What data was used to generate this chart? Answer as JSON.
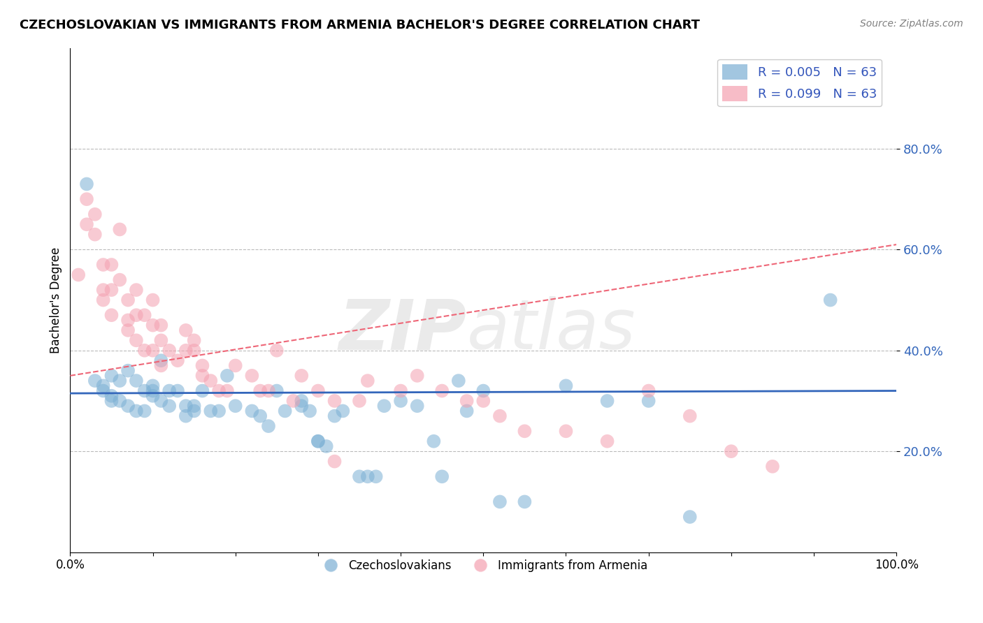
{
  "title": "CZECHOSLOVAKIAN VS IMMIGRANTS FROM ARMENIA BACHELOR'S DEGREE CORRELATION CHART",
  "source": "Source: ZipAtlas.com",
  "ylabel": "Bachelor's Degree",
  "xlim": [
    0.0,
    1.0
  ],
  "ylim": [
    0.0,
    1.0
  ],
  "xticks": [
    0.0,
    0.1,
    0.2,
    0.3,
    0.4,
    0.5,
    0.6,
    0.7,
    0.8,
    0.9,
    1.0
  ],
  "xticklabels": [
    "0.0%",
    "",
    "",
    "",
    "",
    "",
    "",
    "",
    "",
    "",
    "100.0%"
  ],
  "yticks": [
    0.2,
    0.4,
    0.6,
    0.8
  ],
  "yticklabels": [
    "20.0%",
    "40.0%",
    "60.0%",
    "80.0%"
  ],
  "blue_color": "#7BAFD4",
  "pink_color": "#F4A0B0",
  "blue_line_color": "#3366BB",
  "pink_line_color": "#EE6677",
  "grid_color": "#BBBBBB",
  "blue_scatter_x": [
    0.02,
    0.03,
    0.04,
    0.04,
    0.05,
    0.05,
    0.05,
    0.06,
    0.06,
    0.07,
    0.07,
    0.08,
    0.08,
    0.09,
    0.09,
    0.1,
    0.1,
    0.1,
    0.11,
    0.11,
    0.12,
    0.12,
    0.13,
    0.14,
    0.14,
    0.15,
    0.15,
    0.16,
    0.17,
    0.18,
    0.19,
    0.2,
    0.22,
    0.23,
    0.24,
    0.25,
    0.26,
    0.28,
    0.28,
    0.29,
    0.3,
    0.3,
    0.31,
    0.32,
    0.33,
    0.35,
    0.36,
    0.37,
    0.38,
    0.4,
    0.42,
    0.44,
    0.45,
    0.47,
    0.48,
    0.5,
    0.52,
    0.55,
    0.6,
    0.65,
    0.7,
    0.75,
    0.92
  ],
  "blue_scatter_y": [
    0.73,
    0.34,
    0.33,
    0.32,
    0.31,
    0.3,
    0.35,
    0.34,
    0.3,
    0.29,
    0.36,
    0.28,
    0.34,
    0.28,
    0.32,
    0.32,
    0.31,
    0.33,
    0.38,
    0.3,
    0.29,
    0.32,
    0.32,
    0.27,
    0.29,
    0.28,
    0.29,
    0.32,
    0.28,
    0.28,
    0.35,
    0.29,
    0.28,
    0.27,
    0.25,
    0.32,
    0.28,
    0.3,
    0.29,
    0.28,
    0.22,
    0.22,
    0.21,
    0.27,
    0.28,
    0.15,
    0.15,
    0.15,
    0.29,
    0.3,
    0.29,
    0.22,
    0.15,
    0.34,
    0.28,
    0.32,
    0.1,
    0.1,
    0.33,
    0.3,
    0.3,
    0.07,
    0.5
  ],
  "pink_scatter_x": [
    0.01,
    0.02,
    0.02,
    0.03,
    0.03,
    0.04,
    0.04,
    0.04,
    0.05,
    0.05,
    0.05,
    0.06,
    0.06,
    0.07,
    0.07,
    0.07,
    0.08,
    0.08,
    0.08,
    0.09,
    0.09,
    0.1,
    0.1,
    0.1,
    0.11,
    0.11,
    0.11,
    0.12,
    0.13,
    0.14,
    0.14,
    0.15,
    0.15,
    0.16,
    0.16,
    0.17,
    0.18,
    0.19,
    0.2,
    0.22,
    0.23,
    0.24,
    0.25,
    0.27,
    0.28,
    0.3,
    0.32,
    0.35,
    0.36,
    0.4,
    0.42,
    0.45,
    0.48,
    0.5,
    0.52,
    0.55,
    0.6,
    0.65,
    0.7,
    0.75,
    0.8,
    0.85,
    0.32
  ],
  "pink_scatter_y": [
    0.55,
    0.7,
    0.65,
    0.67,
    0.63,
    0.57,
    0.52,
    0.5,
    0.57,
    0.52,
    0.47,
    0.64,
    0.54,
    0.5,
    0.46,
    0.44,
    0.52,
    0.47,
    0.42,
    0.47,
    0.4,
    0.45,
    0.5,
    0.4,
    0.45,
    0.42,
    0.37,
    0.4,
    0.38,
    0.4,
    0.44,
    0.4,
    0.42,
    0.37,
    0.35,
    0.34,
    0.32,
    0.32,
    0.37,
    0.35,
    0.32,
    0.32,
    0.4,
    0.3,
    0.35,
    0.32,
    0.3,
    0.3,
    0.34,
    0.32,
    0.35,
    0.32,
    0.3,
    0.3,
    0.27,
    0.24,
    0.24,
    0.22,
    0.32,
    0.27,
    0.2,
    0.17,
    0.18
  ],
  "blue_trend_x": [
    0.0,
    1.0
  ],
  "blue_trend_y": [
    0.315,
    0.32
  ],
  "pink_trend_x": [
    0.0,
    1.0
  ],
  "pink_trend_y": [
    0.35,
    0.61
  ],
  "figsize": [
    14.06,
    8.92
  ],
  "dpi": 100
}
